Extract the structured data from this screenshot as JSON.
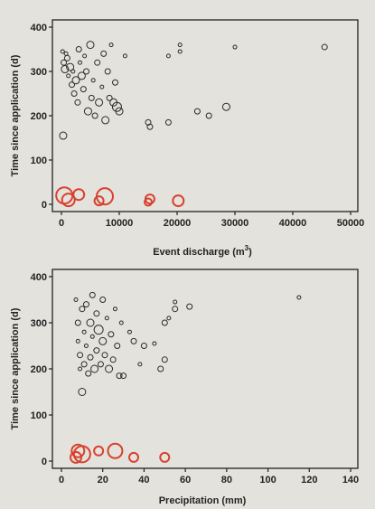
{
  "colors": {
    "background": "#e4e2dc",
    "open_marker": "#2b2b2b",
    "highlight_marker": "#d8412f",
    "axis": "#222222"
  },
  "chart_data": [
    {
      "type": "scatter",
      "title": "",
      "xlabel": "Event discharge (m",
      "xlabel_superscript": "3",
      "xlabel_suffix": ")",
      "ylabel": "Time since application (d)",
      "xlim": [
        0,
        50000
      ],
      "ylim": [
        0,
        400
      ],
      "xticks": [
        "0",
        "10000",
        "20000",
        "30000",
        "40000",
        "50000"
      ],
      "yticks": [
        "0",
        "100",
        "200",
        "300",
        "400"
      ],
      "grid": false,
      "marker_size_encodes_third_variable": true,
      "series": [
        {
          "marker": "open-circle-black",
          "points": [
            {
              "x": 200,
              "y": 345,
              "s": 2
            },
            {
              "x": 400,
              "y": 320,
              "s": 3
            },
            {
              "x": 600,
              "y": 305,
              "s": 4
            },
            {
              "x": 800,
              "y": 340,
              "s": 2
            },
            {
              "x": 1000,
              "y": 330,
              "s": 3
            },
            {
              "x": 1200,
              "y": 290,
              "s": 2
            },
            {
              "x": 1500,
              "y": 310,
              "s": 4
            },
            {
              "x": 1800,
              "y": 270,
              "s": 3
            },
            {
              "x": 2000,
              "y": 300,
              "s": 2
            },
            {
              "x": 2200,
              "y": 250,
              "s": 3
            },
            {
              "x": 2500,
              "y": 280,
              "s": 4
            },
            {
              "x": 2800,
              "y": 230,
              "s": 3
            },
            {
              "x": 3000,
              "y": 350,
              "s": 3
            },
            {
              "x": 3200,
              "y": 320,
              "s": 2
            },
            {
              "x": 3500,
              "y": 290,
              "s": 4
            },
            {
              "x": 3800,
              "y": 260,
              "s": 3
            },
            {
              "x": 4000,
              "y": 335,
              "s": 2
            },
            {
              "x": 4300,
              "y": 300,
              "s": 3
            },
            {
              "x": 4600,
              "y": 210,
              "s": 4
            },
            {
              "x": 5000,
              "y": 360,
              "s": 4
            },
            {
              "x": 5200,
              "y": 240,
              "s": 3
            },
            {
              "x": 5500,
              "y": 280,
              "s": 2
            },
            {
              "x": 5800,
              "y": 200,
              "s": 3
            },
            {
              "x": 6200,
              "y": 320,
              "s": 3
            },
            {
              "x": 6500,
              "y": 230,
              "s": 4
            },
            {
              "x": 7000,
              "y": 265,
              "s": 2
            },
            {
              "x": 7300,
              "y": 340,
              "s": 3
            },
            {
              "x": 7600,
              "y": 190,
              "s": 4
            },
            {
              "x": 8000,
              "y": 300,
              "s": 3
            },
            {
              "x": 8300,
              "y": 240,
              "s": 3
            },
            {
              "x": 8600,
              "y": 360,
              "s": 2
            },
            {
              "x": 9000,
              "y": 230,
              "s": 4
            },
            {
              "x": 9300,
              "y": 275,
              "s": 3
            },
            {
              "x": 9600,
              "y": 220,
              "s": 5
            },
            {
              "x": 10000,
              "y": 210,
              "s": 4
            },
            {
              "x": 11000,
              "y": 335,
              "s": 2
            },
            {
              "x": 15000,
              "y": 185,
              "s": 3
            },
            {
              "x": 15300,
              "y": 175,
              "s": 3
            },
            {
              "x": 18500,
              "y": 335,
              "s": 2
            },
            {
              "x": 18500,
              "y": 185,
              "s": 3
            },
            {
              "x": 20500,
              "y": 360,
              "s": 2
            },
            {
              "x": 20500,
              "y": 345,
              "s": 2
            },
            {
              "x": 23500,
              "y": 210,
              "s": 3
            },
            {
              "x": 25500,
              "y": 200,
              "s": 3
            },
            {
              "x": 28500,
              "y": 220,
              "s": 4
            },
            {
              "x": 30000,
              "y": 355,
              "s": 2
            },
            {
              "x": 45500,
              "y": 355,
              "s": 3
            },
            {
              "x": 300,
              "y": 155,
              "s": 4
            }
          ]
        },
        {
          "marker": "open-circle-red",
          "points": [
            {
              "x": 500,
              "y": 20,
              "s": 9
            },
            {
              "x": 1200,
              "y": 10,
              "s": 7
            },
            {
              "x": 3000,
              "y": 22,
              "s": 6
            },
            {
              "x": 6500,
              "y": 8,
              "s": 5
            },
            {
              "x": 7500,
              "y": 18,
              "s": 9
            },
            {
              "x": 15000,
              "y": 5,
              "s": 4
            },
            {
              "x": 15300,
              "y": 12,
              "s": 5
            },
            {
              "x": 20200,
              "y": 8,
              "s": 6
            }
          ]
        }
      ]
    },
    {
      "type": "scatter",
      "title": "",
      "xlabel": "Precipitation (mm)",
      "ylabel": "Time since application (d)",
      "xlim": [
        0,
        140
      ],
      "ylim": [
        0,
        400
      ],
      "xticks": [
        "0",
        "20",
        "40",
        "60",
        "80",
        "100",
        "120",
        "140"
      ],
      "yticks": [
        "0",
        "100",
        "200",
        "300",
        "400"
      ],
      "grid": false,
      "marker_size_encodes_third_variable": true,
      "series": [
        {
          "marker": "open-circle-black",
          "points": [
            {
              "x": 7,
              "y": 350,
              "s": 2
            },
            {
              "x": 8,
              "y": 300,
              "s": 3
            },
            {
              "x": 8,
              "y": 260,
              "s": 2
            },
            {
              "x": 9,
              "y": 230,
              "s": 3
            },
            {
              "x": 9,
              "y": 200,
              "s": 2
            },
            {
              "x": 10,
              "y": 330,
              "s": 3
            },
            {
              "x": 10,
              "y": 150,
              "s": 4
            },
            {
              "x": 11,
              "y": 280,
              "s": 2
            },
            {
              "x": 11,
              "y": 210,
              "s": 3
            },
            {
              "x": 12,
              "y": 340,
              "s": 3
            },
            {
              "x": 12,
              "y": 250,
              "s": 2
            },
            {
              "x": 13,
              "y": 190,
              "s": 3
            },
            {
              "x": 14,
              "y": 300,
              "s": 4
            },
            {
              "x": 14,
              "y": 225,
              "s": 3
            },
            {
              "x": 15,
              "y": 360,
              "s": 3
            },
            {
              "x": 15,
              "y": 270,
              "s": 2
            },
            {
              "x": 16,
              "y": 200,
              "s": 4
            },
            {
              "x": 17,
              "y": 320,
              "s": 3
            },
            {
              "x": 17,
              "y": 240,
              "s": 3
            },
            {
              "x": 18,
              "y": 285,
              "s": 5
            },
            {
              "x": 19,
              "y": 210,
              "s": 3
            },
            {
              "x": 20,
              "y": 350,
              "s": 3
            },
            {
              "x": 20,
              "y": 260,
              "s": 4
            },
            {
              "x": 21,
              "y": 230,
              "s": 3
            },
            {
              "x": 22,
              "y": 310,
              "s": 2
            },
            {
              "x": 23,
              "y": 200,
              "s": 4
            },
            {
              "x": 24,
              "y": 275,
              "s": 3
            },
            {
              "x": 25,
              "y": 220,
              "s": 3
            },
            {
              "x": 26,
              "y": 330,
              "s": 2
            },
            {
              "x": 27,
              "y": 250,
              "s": 3
            },
            {
              "x": 28,
              "y": 185,
              "s": 3
            },
            {
              "x": 29,
              "y": 300,
              "s": 2
            },
            {
              "x": 30,
              "y": 185,
              "s": 3
            },
            {
              "x": 33,
              "y": 280,
              "s": 2
            },
            {
              "x": 35,
              "y": 260,
              "s": 3
            },
            {
              "x": 38,
              "y": 210,
              "s": 2
            },
            {
              "x": 40,
              "y": 250,
              "s": 3
            },
            {
              "x": 45,
              "y": 255,
              "s": 2
            },
            {
              "x": 48,
              "y": 200,
              "s": 3
            },
            {
              "x": 50,
              "y": 300,
              "s": 3
            },
            {
              "x": 50,
              "y": 220,
              "s": 3
            },
            {
              "x": 52,
              "y": 310,
              "s": 2
            },
            {
              "x": 55,
              "y": 330,
              "s": 3
            },
            {
              "x": 55,
              "y": 345,
              "s": 2
            },
            {
              "x": 62,
              "y": 335,
              "s": 3
            },
            {
              "x": 115,
              "y": 355,
              "s": 2
            }
          ]
        },
        {
          "marker": "open-circle-red",
          "points": [
            {
              "x": 7,
              "y": 8,
              "s": 6
            },
            {
              "x": 8,
              "y": 22,
              "s": 7
            },
            {
              "x": 10,
              "y": 15,
              "s": 9
            },
            {
              "x": 18,
              "y": 22,
              "s": 5
            },
            {
              "x": 26,
              "y": 22,
              "s": 8
            },
            {
              "x": 35,
              "y": 8,
              "s": 5
            },
            {
              "x": 50,
              "y": 8,
              "s": 5
            }
          ]
        }
      ]
    }
  ]
}
